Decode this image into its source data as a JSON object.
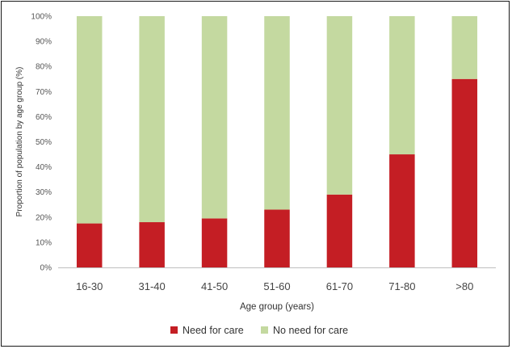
{
  "chart_data": {
    "type": "bar",
    "stacked": true,
    "categories": [
      "16-30",
      "31-40",
      "41-50",
      "51-60",
      "61-70",
      "71-80",
      ">80"
    ],
    "series": [
      {
        "name": "Need for care",
        "color": "#c41e24",
        "values": [
          17.5,
          18,
          19.5,
          23,
          29,
          45,
          75
        ]
      },
      {
        "name": "No need for care",
        "color": "#c4d9a0",
        "values": [
          82.5,
          82,
          80.5,
          77,
          71,
          55,
          25
        ]
      }
    ],
    "xlabel": "Age group (years)",
    "ylabel": "Proportion of population by age group (%)",
    "ylim": [
      0,
      100
    ],
    "yticks": [
      "0%",
      "10%",
      "20%",
      "30%",
      "40%",
      "50%",
      "60%",
      "70%",
      "80%",
      "90%",
      "100%"
    ],
    "grid": false,
    "legend_position": "bottom"
  }
}
